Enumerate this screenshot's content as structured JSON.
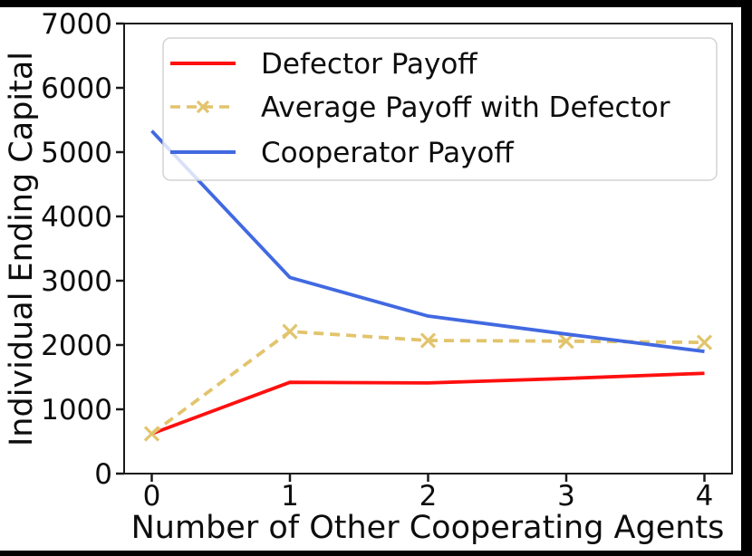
{
  "chart_data": {
    "type": "line",
    "x": [
      0,
      1,
      2,
      3,
      4
    ],
    "series": [
      {
        "name": "Defector Payoff",
        "color": "#ff0f0f",
        "line_style": "solid",
        "marker": "none",
        "values": [
          620,
          1420,
          1410,
          1480,
          1560
        ]
      },
      {
        "name": "Average Payoff with Defector",
        "color": "#e2c46c",
        "line_style": "dashed",
        "marker": "x",
        "values": [
          620,
          2210,
          2070,
          2060,
          2040
        ]
      },
      {
        "name": "Cooperator Payoff",
        "color": "#4169e1",
        "line_style": "solid",
        "marker": "none",
        "values": [
          5330,
          3050,
          2450,
          2170,
          1900
        ]
      }
    ],
    "title": "",
    "xlabel": "Number of Other Cooperating Agents",
    "ylabel": "Individual Ending Capital",
    "xtick_values": [
      0,
      1,
      2,
      3,
      4
    ],
    "xtick_labels": [
      "0",
      "1",
      "2",
      "3",
      "4"
    ],
    "ytick_values": [
      0,
      1000,
      2000,
      3000,
      4000,
      5000,
      6000,
      7000
    ],
    "ytick_labels": [
      "0",
      "1000",
      "2000",
      "3000",
      "4000",
      "5000",
      "6000",
      "7000"
    ],
    "xlim": [
      -0.2,
      4.2
    ],
    "ylim": [
      0,
      7000
    ],
    "grid": false,
    "legend_position": "upper left",
    "background": "#ffffff",
    "frame_color": "#000000",
    "axis_color": "#1a1a1a"
  }
}
